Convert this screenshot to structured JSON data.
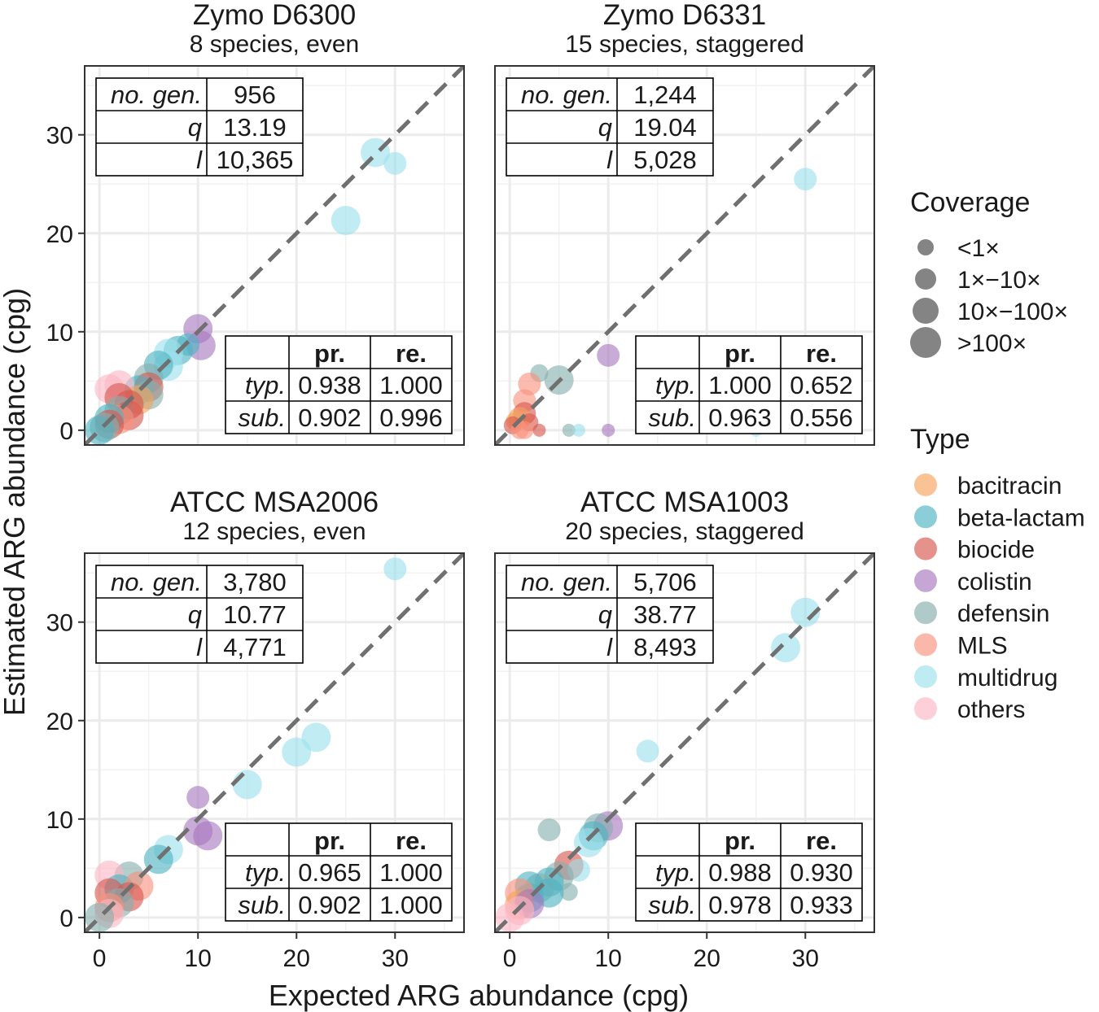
{
  "x_axis_label": "Expected ARG abundance (cpg)",
  "y_axis_label": "Estimated ARG abundance (cpg)",
  "legend": {
    "coverage_title": "Coverage",
    "coverage_levels": [
      {
        "label": "<1×",
        "size_rank": 1
      },
      {
        "label": "1×−10×",
        "size_rank": 2
      },
      {
        "label": "10×−100×",
        "size_rank": 3
      },
      {
        "label": ">100×",
        "size_rank": 4
      }
    ],
    "type_title": "Type",
    "types": [
      {
        "label": "bacitracin",
        "color": "#F6A35C"
      },
      {
        "label": "beta-lactam",
        "color": "#4FB3C2"
      },
      {
        "label": "biocide",
        "color": "#D9574F"
      },
      {
        "label": "colistin",
        "color": "#A877BE"
      },
      {
        "label": "defensin",
        "color": "#86AEAE"
      },
      {
        "label": "MLS",
        "color": "#F8917C"
      },
      {
        "label": "multidrug",
        "color": "#9DE0EB"
      },
      {
        "label": "others",
        "color": "#FBB6C4"
      }
    ]
  },
  "table_headers": {
    "no_gen": "no. gen.",
    "q": "q",
    "l": "l",
    "pr": "pr.",
    "re": "re.",
    "typ": "typ.",
    "sub": "sub."
  },
  "chart_data": [
    {
      "type": "scatter",
      "title": "Zymo D6300",
      "subtitle": "8 species, even",
      "xlim": [
        -1.5,
        37
      ],
      "ylim": [
        -1.5,
        37
      ],
      "xticks": [
        0,
        10,
        20,
        30
      ],
      "yticks": [
        0,
        10,
        20,
        30
      ],
      "stats": {
        "no_gen": "956",
        "q": "13.19",
        "l": "10,365"
      },
      "metrics": {
        "typ_pr": "0.938",
        "typ_re": "1.000",
        "sub_pr": "0.902",
        "sub_re": "0.996"
      },
      "reference_line": "y = x",
      "points": [
        {
          "x": 28,
          "y": 28.2,
          "type": "multidrug",
          "cov": 4
        },
        {
          "x": 30,
          "y": 27.1,
          "type": "multidrug",
          "cov": 3
        },
        {
          "x": 25,
          "y": 21.3,
          "type": "multidrug",
          "cov": 4
        },
        {
          "x": 10,
          "y": 10.3,
          "type": "colistin",
          "cov": 4
        },
        {
          "x": 10.3,
          "y": 8.6,
          "type": "colistin",
          "cov": 4
        },
        {
          "x": 9,
          "y": 8.7,
          "type": "beta-lactam",
          "cov": 3
        },
        {
          "x": 8,
          "y": 8.1,
          "type": "beta-lactam",
          "cov": 4
        },
        {
          "x": 7,
          "y": 7.8,
          "type": "multidrug",
          "cov": 4
        },
        {
          "x": 7,
          "y": 6.5,
          "type": "multidrug",
          "cov": 4
        },
        {
          "x": 6,
          "y": 6.6,
          "type": "beta-lactam",
          "cov": 4
        },
        {
          "x": 5,
          "y": 5.3,
          "type": "defensin",
          "cov": 4
        },
        {
          "x": 5,
          "y": 4.4,
          "type": "biocide",
          "cov": 4
        },
        {
          "x": 4,
          "y": 4.1,
          "type": "beta-lactam",
          "cov": 4
        },
        {
          "x": 5,
          "y": 3.6,
          "type": "defensin",
          "cov": 4
        },
        {
          "x": 2,
          "y": 4.6,
          "type": "others",
          "cov": 4
        },
        {
          "x": 1,
          "y": 4.2,
          "type": "others",
          "cov": 4
        },
        {
          "x": 4,
          "y": 3.1,
          "type": "bacitracin",
          "cov": 4
        },
        {
          "x": 3,
          "y": 2.6,
          "type": "biocide",
          "cov": 4
        },
        {
          "x": 2,
          "y": 3.3,
          "type": "biocide",
          "cov": 4
        },
        {
          "x": 2,
          "y": 2.0,
          "type": "defensin",
          "cov": 4
        },
        {
          "x": 3,
          "y": 1.5,
          "type": "biocide",
          "cov": 4
        },
        {
          "x": 2,
          "y": 1.1,
          "type": "MLS",
          "cov": 4
        },
        {
          "x": 1,
          "y": 1.2,
          "type": "beta-lactam",
          "cov": 4
        },
        {
          "x": 1,
          "y": 0.6,
          "type": "biocide",
          "cov": 4
        },
        {
          "x": 0.5,
          "y": 0.3,
          "type": "defensin",
          "cov": 4
        },
        {
          "x": 0,
          "y": 0,
          "type": "beta-lactam",
          "cov": 4
        }
      ]
    },
    {
      "type": "scatter",
      "title": "Zymo D6331",
      "subtitle": "15 species, staggered",
      "xlim": [
        -1.5,
        37
      ],
      "ylim": [
        -1.5,
        37
      ],
      "xticks": [
        0,
        10,
        20,
        30
      ],
      "yticks": [
        0,
        10,
        20,
        30
      ],
      "stats": {
        "no_gen": "1,244",
        "q": "19.04",
        "l": "5,028"
      },
      "metrics": {
        "typ_pr": "1.000",
        "typ_re": "0.652",
        "sub_pr": "0.963",
        "sub_re": "0.556"
      },
      "reference_line": "y = x",
      "points": [
        {
          "x": 30,
          "y": 25.5,
          "type": "multidrug",
          "cov": 3
        },
        {
          "x": 10,
          "y": 7.6,
          "type": "colistin",
          "cov": 3
        },
        {
          "x": 5,
          "y": 5.1,
          "type": "defensin",
          "cov": 4
        },
        {
          "x": 3,
          "y": 5.8,
          "type": "defensin",
          "cov": 2
        },
        {
          "x": 2,
          "y": 4.7,
          "type": "MLS",
          "cov": 3
        },
        {
          "x": 1.5,
          "y": 3.0,
          "type": "MLS",
          "cov": 3
        },
        {
          "x": 1.5,
          "y": 1.7,
          "type": "biocide",
          "cov": 3
        },
        {
          "x": 1,
          "y": 1.2,
          "type": "bacitracin",
          "cov": 3
        },
        {
          "x": 2,
          "y": 0.8,
          "type": "biocide",
          "cov": 2
        },
        {
          "x": 0.5,
          "y": 0.9,
          "type": "bacitracin",
          "cov": 2
        },
        {
          "x": 0.3,
          "y": 0.5,
          "type": "biocide",
          "cov": 2
        },
        {
          "x": 1,
          "y": 0,
          "type": "MLS",
          "cov": 2
        },
        {
          "x": 1.5,
          "y": 0,
          "type": "MLS",
          "cov": 2
        },
        {
          "x": 3,
          "y": 0,
          "type": "biocide",
          "cov": 1
        },
        {
          "x": 6,
          "y": 0,
          "type": "defensin",
          "cov": 1
        },
        {
          "x": 7,
          "y": 0,
          "type": "multidrug",
          "cov": 1
        },
        {
          "x": 10,
          "y": 0,
          "type": "colistin",
          "cov": 1
        },
        {
          "x": 25,
          "y": 0,
          "type": "multidrug",
          "cov": 1
        }
      ]
    },
    {
      "type": "scatter",
      "title": "ATCC MSA2006",
      "subtitle": "12 species, even",
      "xlim": [
        -1.5,
        37
      ],
      "ylim": [
        -1.5,
        37
      ],
      "xticks": [
        0,
        10,
        20,
        30
      ],
      "yticks": [
        0,
        10,
        20,
        30
      ],
      "stats": {
        "no_gen": "3,780",
        "q": "10.77",
        "l": "4,771"
      },
      "metrics": {
        "typ_pr": "0.965",
        "typ_re": "1.000",
        "sub_pr": "0.902",
        "sub_re": "1.000"
      },
      "reference_line": "y = x",
      "points": [
        {
          "x": 30,
          "y": 35.4,
          "type": "multidrug",
          "cov": 3
        },
        {
          "x": 22,
          "y": 18.3,
          "type": "multidrug",
          "cov": 4
        },
        {
          "x": 20,
          "y": 16.8,
          "type": "multidrug",
          "cov": 4
        },
        {
          "x": 15,
          "y": 13.5,
          "type": "multidrug",
          "cov": 4
        },
        {
          "x": 10,
          "y": 12.2,
          "type": "colistin",
          "cov": 3
        },
        {
          "x": 10,
          "y": 8.8,
          "type": "colistin",
          "cov": 4
        },
        {
          "x": 11,
          "y": 8.3,
          "type": "colistin",
          "cov": 4
        },
        {
          "x": 7,
          "y": 6.9,
          "type": "multidrug",
          "cov": 4
        },
        {
          "x": 6,
          "y": 5.9,
          "type": "beta-lactam",
          "cov": 4
        },
        {
          "x": 3,
          "y": 4.2,
          "type": "defensin",
          "cov": 4
        },
        {
          "x": 1,
          "y": 4.3,
          "type": "others",
          "cov": 4
        },
        {
          "x": 2,
          "y": 2.9,
          "type": "beta-lactam",
          "cov": 4
        },
        {
          "x": 4,
          "y": 3.2,
          "type": "MLS",
          "cov": 4
        },
        {
          "x": 1,
          "y": 2.5,
          "type": "biocide",
          "cov": 4
        },
        {
          "x": 3,
          "y": 2.1,
          "type": "biocide",
          "cov": 4
        },
        {
          "x": 2,
          "y": 1.5,
          "type": "defensin",
          "cov": 4
        },
        {
          "x": 1,
          "y": 1.0,
          "type": "MLS",
          "cov": 4
        },
        {
          "x": 1,
          "y": 0.4,
          "type": "others",
          "cov": 4
        },
        {
          "x": 0,
          "y": 0,
          "type": "defensin",
          "cov": 4
        }
      ]
    },
    {
      "type": "scatter",
      "title": "ATCC MSA1003",
      "subtitle": "20 species, staggered",
      "xlim": [
        -1.5,
        37
      ],
      "ylim": [
        -1.5,
        37
      ],
      "xticks": [
        0,
        10,
        20,
        30
      ],
      "yticks": [
        0,
        10,
        20,
        30
      ],
      "stats": {
        "no_gen": "5,706",
        "q": "38.77",
        "l": "8,493"
      },
      "metrics": {
        "typ_pr": "0.988",
        "typ_re": "0.930",
        "sub_pr": "0.978",
        "sub_re": "0.933"
      },
      "reference_line": "y = x",
      "points": [
        {
          "x": 30,
          "y": 31.0,
          "type": "multidrug",
          "cov": 4
        },
        {
          "x": 28,
          "y": 27.4,
          "type": "multidrug",
          "cov": 4
        },
        {
          "x": 14,
          "y": 16.9,
          "type": "multidrug",
          "cov": 3
        },
        {
          "x": 10,
          "y": 9.3,
          "type": "colistin",
          "cov": 4
        },
        {
          "x": 9,
          "y": 9.1,
          "type": "defensin",
          "cov": 4
        },
        {
          "x": 8.5,
          "y": 8.3,
          "type": "beta-lactam",
          "cov": 4
        },
        {
          "x": 8,
          "y": 7.6,
          "type": "multidrug",
          "cov": 4
        },
        {
          "x": 4,
          "y": 8.9,
          "type": "defensin",
          "cov": 3
        },
        {
          "x": 6,
          "y": 5.3,
          "type": "biocide",
          "cov": 4
        },
        {
          "x": 7,
          "y": 4.8,
          "type": "multidrug",
          "cov": 3
        },
        {
          "x": 5,
          "y": 4.2,
          "type": "defensin",
          "cov": 4
        },
        {
          "x": 4,
          "y": 3.6,
          "type": "beta-lactam",
          "cov": 4
        },
        {
          "x": 3,
          "y": 3.0,
          "type": "defensin",
          "cov": 4
        },
        {
          "x": 2,
          "y": 3.2,
          "type": "beta-lactam",
          "cov": 4
        },
        {
          "x": 6,
          "y": 2.6,
          "type": "defensin",
          "cov": 2
        },
        {
          "x": 4,
          "y": 2.5,
          "type": "beta-lactam",
          "cov": 4
        },
        {
          "x": 2,
          "y": 2.0,
          "type": "beta-lactam",
          "cov": 4
        },
        {
          "x": 1,
          "y": 2.5,
          "type": "MLS",
          "cov": 4
        },
        {
          "x": 1,
          "y": 1.3,
          "type": "bacitracin",
          "cov": 4
        },
        {
          "x": 2,
          "y": 1.4,
          "type": "colistin",
          "cov": 4
        },
        {
          "x": 1,
          "y": 0.7,
          "type": "others",
          "cov": 4
        },
        {
          "x": 0,
          "y": 0,
          "type": "others",
          "cov": 4
        }
      ]
    }
  ]
}
